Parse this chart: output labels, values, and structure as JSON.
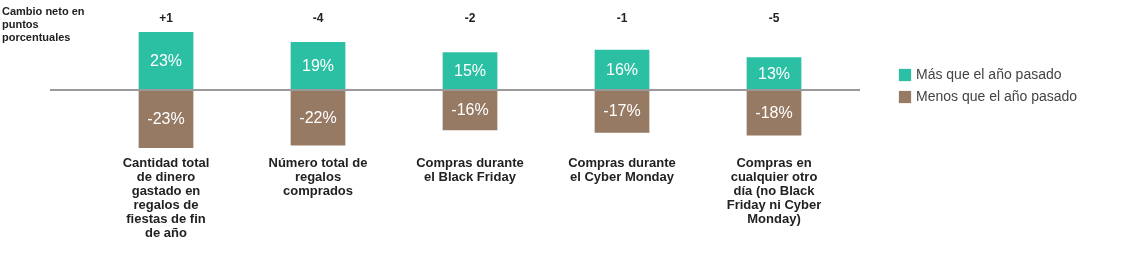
{
  "chart_data": {
    "type": "bar",
    "stacked": true,
    "legend": "right",
    "categories": [
      "Cantidad total de dinero gastado en regalos de fiestas de fin de año",
      "Número total de regalos comprados",
      "Compras durante el Black Friday",
      "Compras durante el Cyber Monday",
      "Compras en cualquier otro día (no Black Friday ni Cyber Monday)"
    ],
    "series": [
      {
        "name": "Más que el año pasado",
        "color": "#2bbfa4",
        "values": [
          23,
          19,
          15,
          16,
          13
        ],
        "value_labels": [
          "23%",
          "19%",
          "15%",
          "16%",
          "13%"
        ]
      },
      {
        "name": "Menos que el año pasado",
        "color": "#977a64",
        "values": [
          -23,
          -22,
          -16,
          -17,
          -18
        ],
        "value_labels": [
          "-23%",
          "-22%",
          "-16%",
          "-17%",
          "-18%"
        ]
      }
    ],
    "annotations": [
      "Cambio neto en puntos porcentuales",
      "+1",
      "-4",
      "-2",
      "-1",
      "-5"
    ]
  }
}
